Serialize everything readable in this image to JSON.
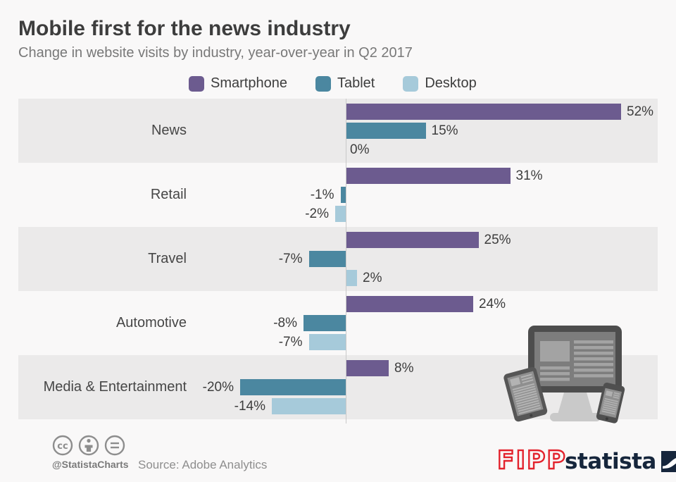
{
  "header": {
    "title": "Mobile first for the news industry",
    "subtitle": "Change in website visits by industry, year-over-year in Q2 2017"
  },
  "legend": {
    "items": [
      {
        "label": "Smartphone",
        "color": "#6c5b8f"
      },
      {
        "label": "Tablet",
        "color": "#4b87a0"
      },
      {
        "label": "Desktop",
        "color": "#a6cada"
      }
    ]
  },
  "chart_data": {
    "type": "bar",
    "orientation": "horizontal",
    "title": "Mobile first for the news industry",
    "subtitle": "Change in website visits by industry, year-over-year in Q2 2017",
    "categories": [
      "News",
      "Retail",
      "Travel",
      "Automotive",
      "Media & Entertainment"
    ],
    "series": [
      {
        "name": "Smartphone",
        "color": "#6c5b8f",
        "values": [
          52,
          31,
          25,
          24,
          8
        ]
      },
      {
        "name": "Tablet",
        "color": "#4b87a0",
        "values": [
          15,
          -1,
          -7,
          -8,
          -20
        ]
      },
      {
        "name": "Desktop",
        "color": "#a6cada",
        "values": [
          0,
          -2,
          2,
          -7,
          -14
        ]
      }
    ],
    "value_suffix": "%",
    "xlim": [
      -25,
      60
    ],
    "grid": false,
    "legend_position": "top",
    "row_stripes": true
  },
  "footer": {
    "license_icons": [
      "cc-icon",
      "attribution-icon",
      "no-derivatives-icon"
    ],
    "handle": "@StatistaCharts",
    "source": "Source: Adobe Analytics",
    "partner_logo": "FIPP",
    "brand_logo": "statista"
  },
  "colors": {
    "background": "#f9f8f8",
    "row_stripe": "#ebeaea",
    "axis_line": "#c9c9c9",
    "title": "#3d3d3d",
    "subtitle": "#787878",
    "category_label": "#464646",
    "value_label": "#3d3d3d",
    "fipp_red": "#e3232d",
    "statista_navy": "#16263c"
  }
}
